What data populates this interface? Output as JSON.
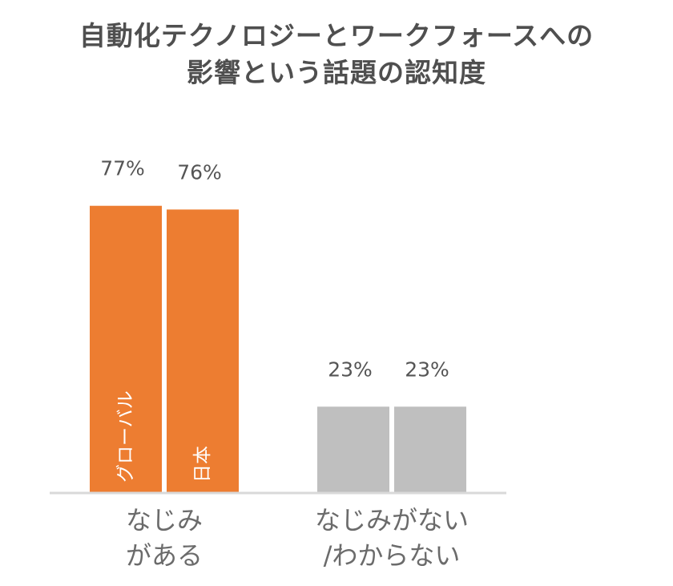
{
  "chart_data": {
    "type": "bar",
    "title_lines": [
      "自動化テクノロジーとワークフォースへの",
      "影響という話題の認知度"
    ],
    "categories": [
      [
        "なじみ",
        "がある"
      ],
      [
        "なじみがない",
        "/わからない"
      ]
    ],
    "series": [
      {
        "name": "グローバル",
        "values": [
          77,
          23
        ]
      },
      {
        "name": "日本",
        "values": [
          76,
          23
        ]
      }
    ],
    "value_labels": [
      [
        "77%",
        "23%"
      ],
      [
        "76%",
        "23%"
      ]
    ],
    "ylim": [
      0,
      100
    ],
    "grid": false,
    "legend": "series names written inside the bars of the first category",
    "colors": {
      "highlight": "#ed7d31",
      "muted": "#bfbfbf",
      "axis": "#d9d9d9"
    }
  }
}
